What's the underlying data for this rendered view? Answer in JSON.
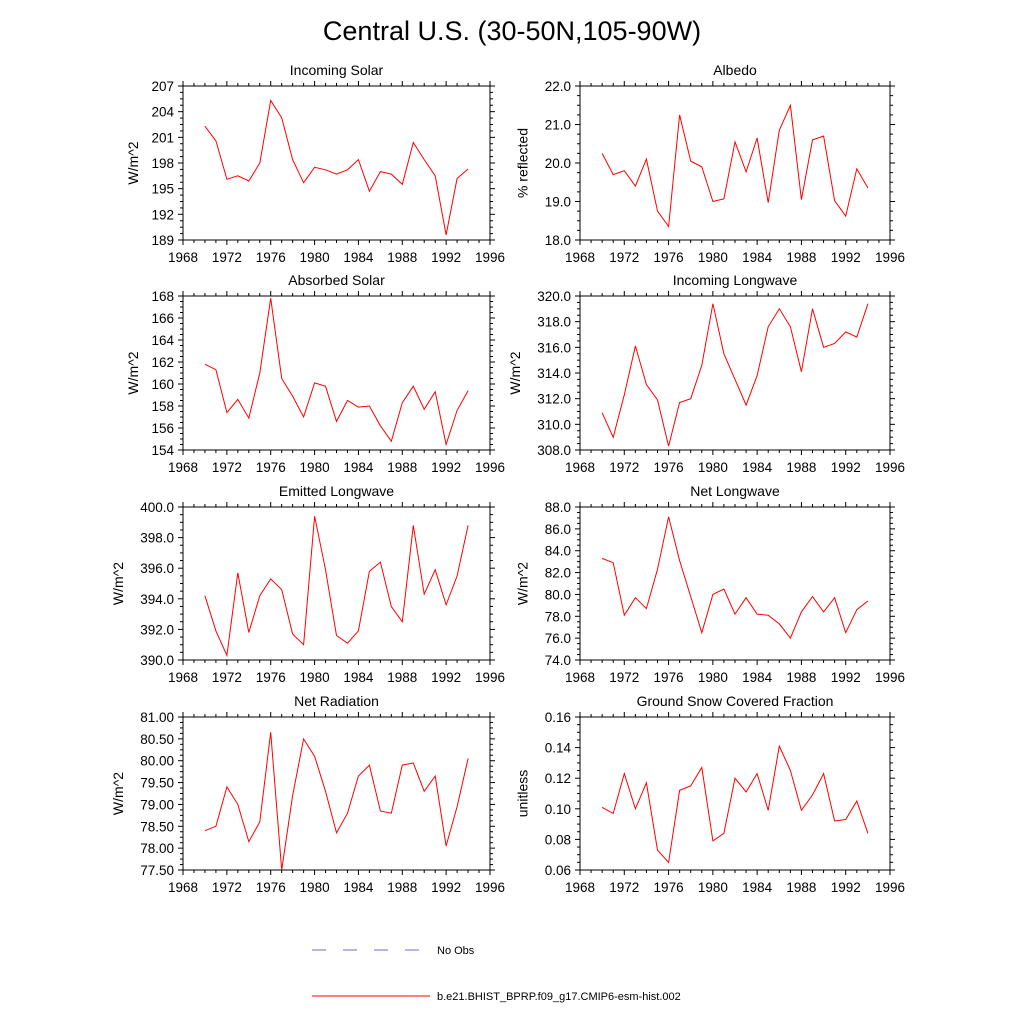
{
  "title": "Central U.S. (30-50N,105-90W)",
  "colors": {
    "model": "#ff0000",
    "obs": "#6a6ad0",
    "axis": "#000000"
  },
  "legend": [
    {
      "label": "No Obs",
      "style": "dashed",
      "color": "#6a6ad0"
    },
    {
      "label": "b.e21.BHIST_BPRP.f09_g17.CMIP6-esm-hist.002",
      "style": "solid",
      "color": "#ff0000"
    }
  ],
  "chart_data": [
    {
      "type": "line",
      "title": "Incoming Solar",
      "ylabel": "W/m^2",
      "xlim": [
        1968,
        1996
      ],
      "xticks": [
        "1968",
        "1972",
        "1976",
        "1980",
        "1984",
        "1988",
        "1992",
        "1996"
      ],
      "ylim": [
        189,
        207
      ],
      "yticks": [
        "189",
        "192",
        "195",
        "198",
        "201",
        "204",
        "207"
      ],
      "x": [
        1970,
        1971,
        1972,
        1973,
        1974,
        1975,
        1976,
        1977,
        1978,
        1979,
        1980,
        1981,
        1982,
        1983,
        1984,
        1985,
        1986,
        1987,
        1988,
        1989,
        1990,
        1991,
        1992,
        1993,
        1994
      ],
      "series": [
        {
          "name": "b.e21.BHIST_BPRP.f09_g17.CMIP6-esm-hist.002",
          "values": [
            202.3,
            200.6,
            196.1,
            196.5,
            195.9,
            198.0,
            205.3,
            203.3,
            198.4,
            195.7,
            197.5,
            197.2,
            196.7,
            197.2,
            198.4,
            194.7,
            197.0,
            196.7,
            195.5,
            200.4,
            198.4,
            196.5,
            189.6,
            196.2,
            197.3
          ]
        }
      ]
    },
    {
      "type": "line",
      "title": "Albedo",
      "ylabel": "% reflected",
      "xlim": [
        1968,
        1996
      ],
      "xticks": [
        "1968",
        "1972",
        "1976",
        "1980",
        "1984",
        "1988",
        "1992",
        "1996"
      ],
      "ylim": [
        18.0,
        22.0
      ],
      "yticks": [
        "18.0",
        "19.0",
        "20.0",
        "21.0",
        "22.0"
      ],
      "x": [
        1970,
        1971,
        1972,
        1973,
        1974,
        1975,
        1976,
        1977,
        1978,
        1979,
        1980,
        1981,
        1982,
        1983,
        1984,
        1985,
        1986,
        1987,
        1988,
        1989,
        1990,
        1991,
        1992,
        1993,
        1994
      ],
      "series": [
        {
          "name": "b.e21.BHIST_BPRP.f09_g17.CMIP6-esm-hist.002",
          "values": [
            20.25,
            19.7,
            19.8,
            19.4,
            20.1,
            18.75,
            18.35,
            21.25,
            20.05,
            19.9,
            19.0,
            19.07,
            20.55,
            19.77,
            20.65,
            18.97,
            20.85,
            21.5,
            19.05,
            20.6,
            20.7,
            19.02,
            18.62,
            19.85,
            19.35
          ]
        }
      ]
    },
    {
      "type": "line",
      "title": "Absorbed Solar",
      "ylabel": "W/m^2",
      "xlim": [
        1968,
        1996
      ],
      "xticks": [
        "1968",
        "1972",
        "1976",
        "1980",
        "1984",
        "1988",
        "1992",
        "1996"
      ],
      "ylim": [
        154,
        168
      ],
      "yticks": [
        "154",
        "156",
        "158",
        "160",
        "162",
        "164",
        "166",
        "168"
      ],
      "x": [
        1970,
        1971,
        1972,
        1973,
        1974,
        1975,
        1976,
        1977,
        1978,
        1979,
        1980,
        1981,
        1982,
        1983,
        1984,
        1985,
        1986,
        1987,
        1988,
        1989,
        1990,
        1991,
        1992,
        1993,
        1994
      ],
      "series": [
        {
          "name": "b.e21.BHIST_BPRP.f09_g17.CMIP6-esm-hist.002",
          "values": [
            161.8,
            161.3,
            157.4,
            158.6,
            156.9,
            161.0,
            167.8,
            160.5,
            158.9,
            157.0,
            160.1,
            159.8,
            156.6,
            158.5,
            157.9,
            158.0,
            156.2,
            154.8,
            158.3,
            159.8,
            157.7,
            159.3,
            154.5,
            157.6,
            159.4
          ]
        }
      ]
    },
    {
      "type": "line",
      "title": "Incoming Longwave",
      "ylabel": "W/m^2",
      "xlim": [
        1968,
        1996
      ],
      "xticks": [
        "1968",
        "1972",
        "1976",
        "1980",
        "1984",
        "1988",
        "1992",
        "1996"
      ],
      "ylim": [
        308.0,
        320.0
      ],
      "yticks": [
        "308.0",
        "310.0",
        "312.0",
        "314.0",
        "316.0",
        "318.0",
        "320.0"
      ],
      "x": [
        1970,
        1971,
        1972,
        1973,
        1974,
        1975,
        1976,
        1977,
        1978,
        1979,
        1980,
        1981,
        1982,
        1983,
        1984,
        1985,
        1986,
        1987,
        1988,
        1989,
        1990,
        1991,
        1992,
        1993,
        1994
      ],
      "series": [
        {
          "name": "b.e21.BHIST_BPRP.f09_g17.CMIP6-esm-hist.002",
          "values": [
            310.9,
            309.0,
            312.3,
            316.1,
            313.1,
            311.9,
            308.3,
            311.7,
            312.0,
            314.6,
            319.4,
            315.5,
            313.5,
            311.5,
            313.8,
            317.6,
            319.0,
            317.6,
            314.1,
            319.0,
            316.0,
            316.3,
            317.2,
            316.8,
            319.4
          ]
        }
      ]
    },
    {
      "type": "line",
      "title": "Emitted Longwave",
      "ylabel": "W/m^2",
      "xlim": [
        1968,
        1996
      ],
      "xticks": [
        "1968",
        "1972",
        "1976",
        "1980",
        "1984",
        "1988",
        "1992",
        "1996"
      ],
      "ylim": [
        390.0,
        400.0
      ],
      "yticks": [
        "390.0",
        "392.0",
        "394.0",
        "396.0",
        "398.0",
        "400.0"
      ],
      "x": [
        1970,
        1971,
        1972,
        1973,
        1974,
        1975,
        1976,
        1977,
        1978,
        1979,
        1980,
        1981,
        1982,
        1983,
        1984,
        1985,
        1986,
        1987,
        1988,
        1989,
        1990,
        1991,
        1992,
        1993,
        1994
      ],
      "series": [
        {
          "name": "b.e21.BHIST_BPRP.f09_g17.CMIP6-esm-hist.002",
          "values": [
            394.2,
            391.9,
            390.3,
            395.7,
            391.8,
            394.2,
            395.3,
            394.6,
            391.7,
            391.0,
            399.4,
            395.9,
            391.6,
            391.1,
            391.9,
            395.8,
            396.4,
            393.5,
            392.5,
            398.8,
            394.3,
            395.9,
            393.6,
            395.5,
            398.8
          ]
        }
      ]
    },
    {
      "type": "line",
      "title": "Net Longwave",
      "ylabel": "W/m^2",
      "xlim": [
        1968,
        1996
      ],
      "xticks": [
        "1968",
        "1972",
        "1976",
        "1980",
        "1984",
        "1988",
        "1992",
        "1996"
      ],
      "ylim": [
        74.0,
        88.0
      ],
      "yticks": [
        "74.0",
        "76.0",
        "78.0",
        "80.0",
        "82.0",
        "84.0",
        "86.0",
        "88.0"
      ],
      "x": [
        1970,
        1971,
        1972,
        1973,
        1974,
        1975,
        1976,
        1977,
        1978,
        1979,
        1980,
        1981,
        1982,
        1983,
        1984,
        1985,
        1986,
        1987,
        1988,
        1989,
        1990,
        1991,
        1992,
        1993,
        1994
      ],
      "series": [
        {
          "name": "b.e21.BHIST_BPRP.f09_g17.CMIP6-esm-hist.002",
          "values": [
            83.3,
            82.9,
            78.1,
            79.7,
            78.7,
            82.3,
            87.1,
            83.1,
            79.8,
            76.5,
            80.0,
            80.5,
            78.2,
            79.7,
            78.2,
            78.1,
            77.3,
            76.0,
            78.4,
            79.8,
            78.4,
            79.7,
            76.5,
            78.6,
            79.4
          ]
        }
      ]
    },
    {
      "type": "line",
      "title": "Net Radiation",
      "ylabel": "W/m^2",
      "xlim": [
        1968,
        1996
      ],
      "xticks": [
        "1968",
        "1972",
        "1976",
        "1980",
        "1984",
        "1988",
        "1992",
        "1996"
      ],
      "ylim": [
        77.5,
        81.0
      ],
      "yticks": [
        "77.50",
        "78.00",
        "78.50",
        "79.00",
        "79.50",
        "80.00",
        "80.50",
        "81.00"
      ],
      "x": [
        1970,
        1971,
        1972,
        1973,
        1974,
        1975,
        1976,
        1977,
        1978,
        1979,
        1980,
        1981,
        1982,
        1983,
        1984,
        1985,
        1986,
        1987,
        1988,
        1989,
        1990,
        1991,
        1992,
        1993,
        1994
      ],
      "series": [
        {
          "name": "b.e21.BHIST_BPRP.f09_g17.CMIP6-esm-hist.002",
          "values": [
            78.4,
            78.5,
            79.4,
            79.0,
            78.15,
            78.6,
            80.65,
            77.5,
            79.2,
            80.5,
            80.1,
            79.3,
            78.35,
            78.8,
            79.65,
            79.9,
            78.85,
            78.8,
            79.9,
            79.95,
            79.3,
            79.65,
            78.05,
            78.95,
            80.05
          ]
        }
      ]
    },
    {
      "type": "line",
      "title": "Ground Snow Covered Fraction",
      "ylabel": "unitless",
      "xlim": [
        1968,
        1996
      ],
      "xticks": [
        "1968",
        "1972",
        "1976",
        "1980",
        "1984",
        "1988",
        "1992",
        "1996"
      ],
      "ylim": [
        0.06,
        0.16
      ],
      "yticks": [
        "0.06",
        "0.08",
        "0.10",
        "0.12",
        "0.14",
        "0.16"
      ],
      "x": [
        1970,
        1971,
        1972,
        1973,
        1974,
        1975,
        1976,
        1977,
        1978,
        1979,
        1980,
        1981,
        1982,
        1983,
        1984,
        1985,
        1986,
        1987,
        1988,
        1989,
        1990,
        1991,
        1992,
        1993,
        1994
      ],
      "series": [
        {
          "name": "b.e21.BHIST_BPRP.f09_g17.CMIP6-esm-hist.002",
          "values": [
            0.101,
            0.097,
            0.123,
            0.1,
            0.117,
            0.073,
            0.065,
            0.112,
            0.115,
            0.127,
            0.079,
            0.084,
            0.12,
            0.111,
            0.123,
            0.099,
            0.141,
            0.125,
            0.099,
            0.109,
            0.123,
            0.092,
            0.093,
            0.105,
            0.084
          ]
        }
      ]
    }
  ]
}
